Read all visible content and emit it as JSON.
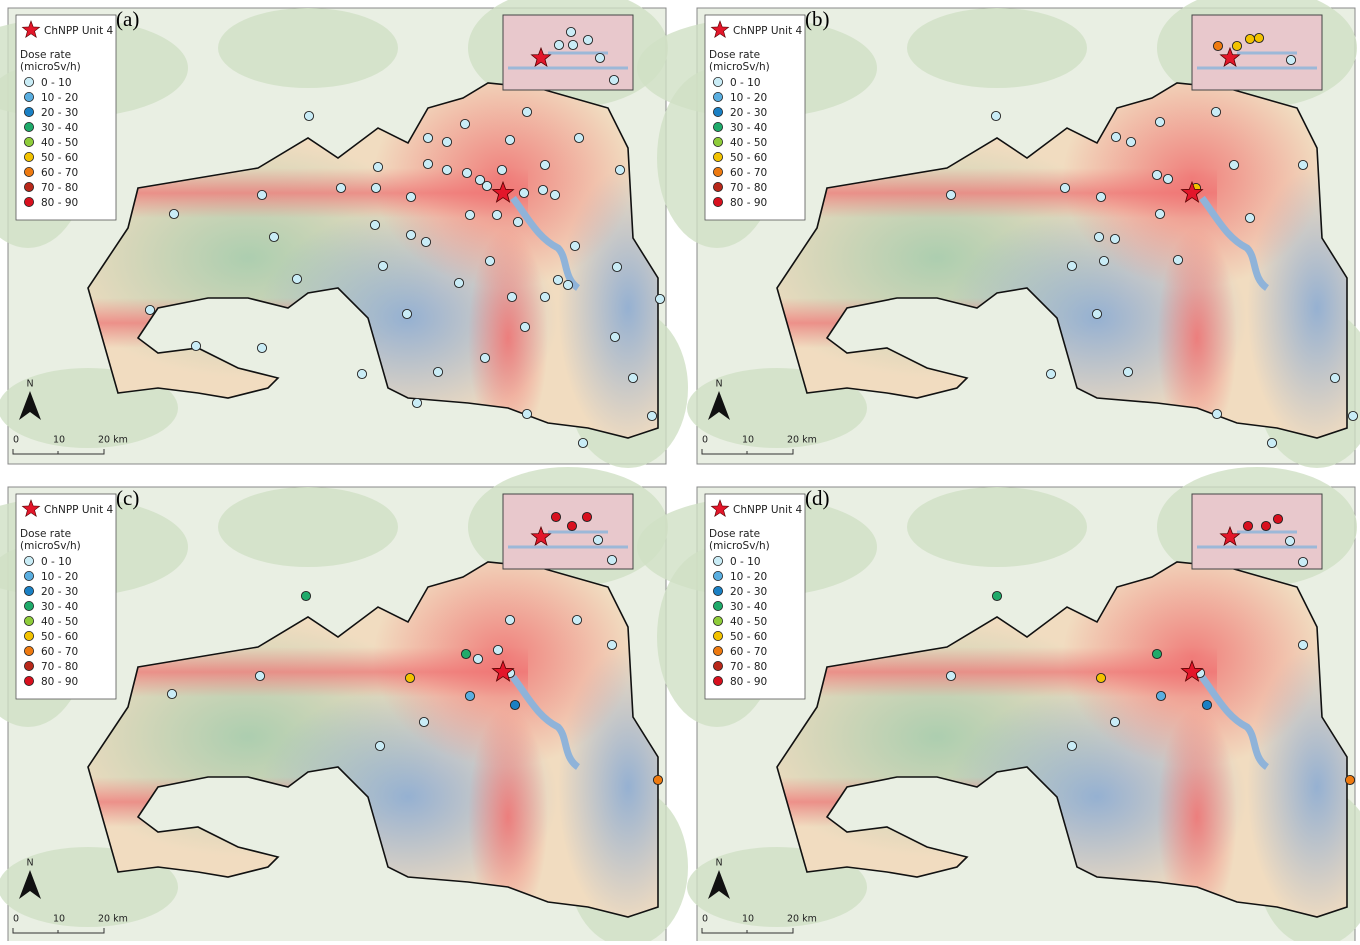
{
  "panels": [
    {
      "label": "(a)"
    },
    {
      "label": "(b)"
    },
    {
      "label": "(c)"
    },
    {
      "label": "(d)"
    }
  ],
  "legend": {
    "star": "ChNPP Unit 4",
    "title": "Dose rate",
    "unit": "(microSv/h)",
    "classes": [
      {
        "label": "0 - 10",
        "color": "#c9ecf6"
      },
      {
        "label": "10 - 20",
        "color": "#5aaee0"
      },
      {
        "label": "20 - 30",
        "color": "#1a80c4"
      },
      {
        "label": "30 - 40",
        "color": "#1faa6a"
      },
      {
        "label": "40 - 50",
        "color": "#8ecc3a"
      },
      {
        "label": "50 - 60",
        "color": "#f2c200"
      },
      {
        "label": "60 - 70",
        "color": "#ee7a10"
      },
      {
        "label": "70 - 80",
        "color": "#b8281a"
      },
      {
        "label": "80 - 90",
        "color": "#d8101e"
      }
    ]
  },
  "north": "N",
  "scale": {
    "labels": [
      "0",
      "10",
      "20 km"
    ]
  }
}
